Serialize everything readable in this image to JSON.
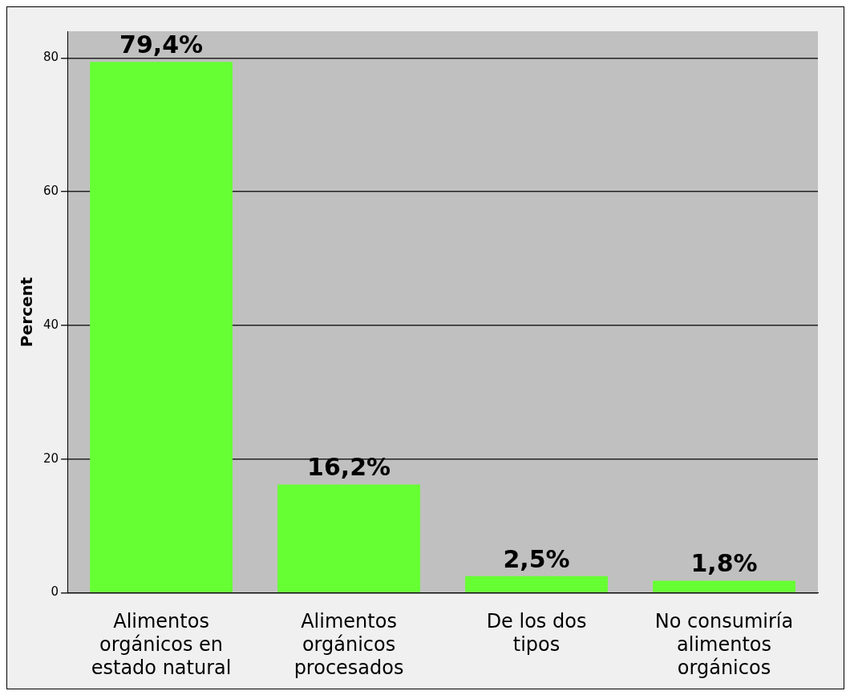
{
  "chart_data": {
    "type": "bar",
    "ylabel": "Percent",
    "categories": [
      "Alimentos orgánicos en estado natural",
      "Alimentos orgánicos procesados",
      "De los dos tipos",
      "No consumiría alimentos orgánicos"
    ],
    "values": [
      79.4,
      16.2,
      2.5,
      1.8
    ],
    "value_labels": [
      "79,4%",
      "16,2%",
      "2,5%",
      "1,8%"
    ],
    "color": "#66ff33",
    "ylim": [
      0,
      84
    ],
    "yticks": [
      0,
      20,
      40,
      60,
      80
    ],
    "grid": "y",
    "legend": false
  }
}
